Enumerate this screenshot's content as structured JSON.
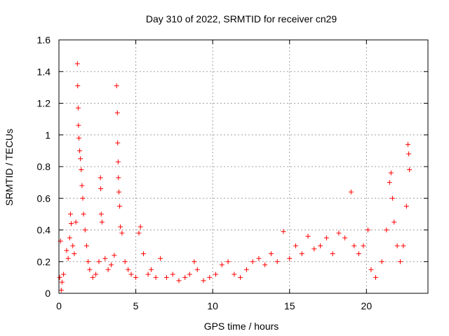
{
  "chart_data": {
    "type": "scatter",
    "title": "Day 310 of 2022, SRMTID for receiver cn29",
    "xlabel": "GPS time / hours",
    "ylabel": "SRMTID / TECUs",
    "xlim": [
      0,
      24
    ],
    "ylim": [
      0,
      1.6
    ],
    "x_ticks": [
      0,
      5,
      10,
      15,
      20
    ],
    "x_tick_labels": [
      "0",
      "5",
      "10",
      "15",
      "20"
    ],
    "y_ticks": [
      0,
      0.2,
      0.4,
      0.6,
      0.8,
      1.0,
      1.2,
      1.4,
      1.6
    ],
    "y_tick_labels": [
      "0",
      "0.2",
      "0.4",
      "0.6",
      "0.8",
      "1",
      "1.2",
      "1.4",
      "1.6"
    ],
    "grid": true,
    "marker": "plus",
    "color": "#ff0000",
    "series": [
      {
        "name": "SRMTID",
        "points": [
          [
            0.05,
            0.1
          ],
          [
            0.1,
            0.33
          ],
          [
            0.15,
            0.02
          ],
          [
            0.2,
            0.07
          ],
          [
            0.3,
            0.12
          ],
          [
            0.5,
            0.27
          ],
          [
            0.6,
            0.22
          ],
          [
            0.7,
            0.35
          ],
          [
            0.75,
            0.5
          ],
          [
            0.8,
            0.44
          ],
          [
            0.9,
            0.3
          ],
          [
            1.0,
            0.25
          ],
          [
            1.1,
            0.45
          ],
          [
            1.2,
            1.45
          ],
          [
            1.22,
            1.31
          ],
          [
            1.25,
            1.17
          ],
          [
            1.27,
            1.06
          ],
          [
            1.3,
            0.98
          ],
          [
            1.35,
            0.9
          ],
          [
            1.4,
            0.85
          ],
          [
            1.45,
            0.78
          ],
          [
            1.5,
            0.68
          ],
          [
            1.55,
            0.6
          ],
          [
            1.6,
            0.5
          ],
          [
            1.7,
            0.4
          ],
          [
            1.8,
            0.3
          ],
          [
            1.9,
            0.2
          ],
          [
            2.0,
            0.15
          ],
          [
            2.2,
            0.1
          ],
          [
            2.4,
            0.12
          ],
          [
            2.6,
            0.2
          ],
          [
            2.7,
            0.73
          ],
          [
            2.72,
            0.66
          ],
          [
            2.75,
            0.5
          ],
          [
            2.8,
            0.45
          ],
          [
            3.0,
            0.22
          ],
          [
            3.2,
            0.15
          ],
          [
            3.4,
            0.18
          ],
          [
            3.6,
            0.24
          ],
          [
            3.75,
            1.31
          ],
          [
            3.8,
            1.14
          ],
          [
            3.82,
            0.95
          ],
          [
            3.85,
            0.83
          ],
          [
            3.87,
            0.73
          ],
          [
            3.9,
            0.64
          ],
          [
            3.95,
            0.55
          ],
          [
            4.0,
            0.42
          ],
          [
            4.1,
            0.38
          ],
          [
            4.3,
            0.2
          ],
          [
            4.5,
            0.15
          ],
          [
            4.7,
            0.12
          ],
          [
            5.0,
            0.1
          ],
          [
            5.2,
            0.38
          ],
          [
            5.3,
            0.42
          ],
          [
            5.5,
            0.25
          ],
          [
            5.8,
            0.12
          ],
          [
            6.0,
            0.15
          ],
          [
            6.3,
            0.1
          ],
          [
            6.6,
            0.22
          ],
          [
            7.0,
            0.1
          ],
          [
            7.4,
            0.12
          ],
          [
            7.8,
            0.08
          ],
          [
            8.2,
            0.1
          ],
          [
            8.5,
            0.12
          ],
          [
            8.8,
            0.2
          ],
          [
            9.0,
            0.15
          ],
          [
            9.4,
            0.08
          ],
          [
            9.8,
            0.1
          ],
          [
            10.2,
            0.12
          ],
          [
            10.6,
            0.18
          ],
          [
            11.0,
            0.2
          ],
          [
            11.4,
            0.12
          ],
          [
            11.8,
            0.1
          ],
          [
            12.2,
            0.15
          ],
          [
            12.6,
            0.2
          ],
          [
            13.0,
            0.22
          ],
          [
            13.4,
            0.18
          ],
          [
            13.8,
            0.25
          ],
          [
            14.2,
            0.2
          ],
          [
            14.6,
            0.39
          ],
          [
            15.0,
            0.22
          ],
          [
            15.4,
            0.3
          ],
          [
            15.8,
            0.25
          ],
          [
            16.2,
            0.36
          ],
          [
            16.6,
            0.28
          ],
          [
            17.0,
            0.3
          ],
          [
            17.4,
            0.35
          ],
          [
            17.8,
            0.25
          ],
          [
            18.2,
            0.38
          ],
          [
            18.6,
            0.35
          ],
          [
            19.0,
            0.64
          ],
          [
            19.2,
            0.3
          ],
          [
            19.5,
            0.25
          ],
          [
            19.8,
            0.3
          ],
          [
            20.1,
            0.4
          ],
          [
            20.3,
            0.15
          ],
          [
            20.6,
            0.1
          ],
          [
            21.0,
            0.2
          ],
          [
            21.3,
            0.4
          ],
          [
            21.5,
            0.7
          ],
          [
            21.6,
            0.76
          ],
          [
            21.7,
            0.6
          ],
          [
            21.8,
            0.45
          ],
          [
            22.0,
            0.3
          ],
          [
            22.2,
            0.2
          ],
          [
            22.4,
            0.3
          ],
          [
            22.6,
            0.55
          ],
          [
            22.7,
            0.94
          ],
          [
            22.75,
            0.88
          ],
          [
            22.8,
            0.78
          ]
        ]
      }
    ]
  }
}
